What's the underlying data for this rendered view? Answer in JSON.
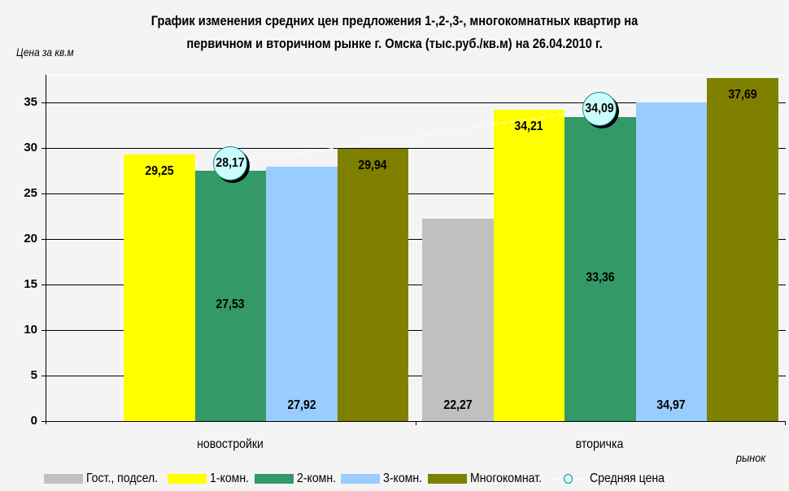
{
  "chart_data": {
    "type": "bar",
    "title": "График изменения средних цен предложения 1-,2-,3-, многокомнатных квартир на первичном и вторичном рынке г. Омска (тыс.руб./кв.м) на 26.04.2010 г.",
    "title_lines": [
      "График изменения средних цен предложения 1-,2-,3-, многокомнатных квартир на",
      "первичном и вторичном рынке г. Омска (тыс.руб./кв.м) на 26.04.2010 г."
    ],
    "ylabel": "Цена за кв.м",
    "xlabel": "рынок",
    "ylim": [
      0,
      37.69
    ],
    "yticks": [
      0,
      5,
      10,
      15,
      20,
      25,
      30,
      35
    ],
    "grid": true,
    "legend_position": "bottom",
    "categories": [
      "новостройки",
      "вторичка"
    ],
    "series": [
      {
        "name": "Гост., подсел.",
        "color": "#c0c0c0",
        "values": [
          null,
          22.27
        ],
        "labels": [
          "",
          "22,27"
        ]
      },
      {
        "name": "1-комн.",
        "color": "#ffff00",
        "values": [
          29.25,
          34.21
        ],
        "labels": [
          "29,25",
          "34,21"
        ]
      },
      {
        "name": "2-комн.",
        "color": "#339966",
        "values": [
          27.53,
          33.36
        ],
        "labels": [
          "27,53",
          "33,36"
        ]
      },
      {
        "name": "3-комн.",
        "color": "#99ccff",
        "values": [
          27.92,
          34.97
        ],
        "labels": [
          "27,92",
          "34,97"
        ]
      },
      {
        "name": "Многокомнат.",
        "color": "#808000",
        "values": [
          29.94,
          37.69
        ],
        "labels": [
          "29,94",
          "37,69"
        ]
      }
    ],
    "line_series": {
      "name": "Средняя цена",
      "type": "line",
      "values": [
        28.17,
        34.09
      ],
      "labels": [
        "28,17",
        "34,09"
      ],
      "marker_color": "#ccfdfd"
    }
  }
}
